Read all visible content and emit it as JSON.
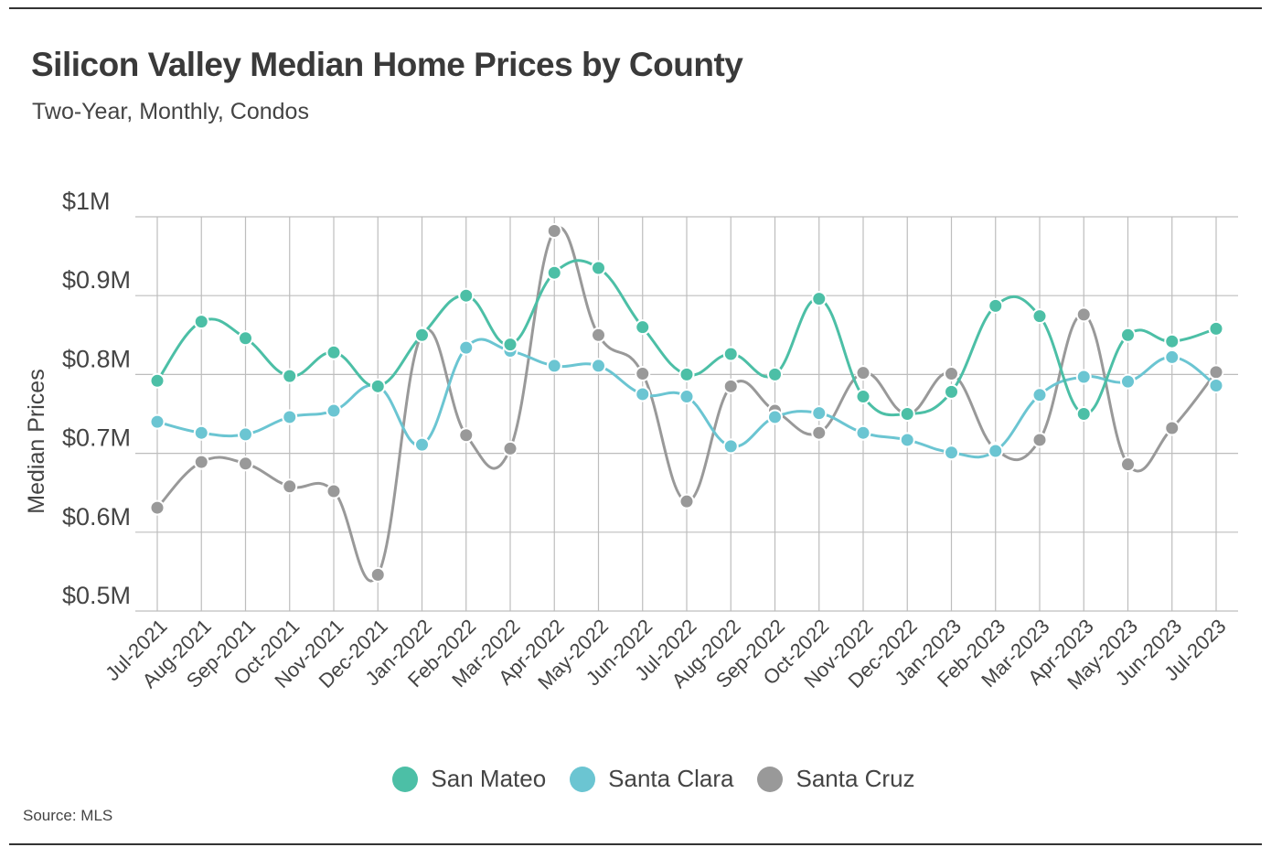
{
  "header": {
    "title": "Silicon Valley Median Home Prices by County",
    "subtitle": "Two-Year, Monthly, Condos"
  },
  "footer": {
    "source": "Source:  MLS"
  },
  "chart_data": {
    "type": "line",
    "title": "Silicon Valley Median Home Prices by County",
    "subtitle": "Two-Year, Monthly, Condos",
    "xlabel": "",
    "ylabel": "Median Prices",
    "ylim": [
      0.5,
      1.0
    ],
    "yticks": [
      0.5,
      0.6,
      0.7,
      0.8,
      0.9,
      1.0
    ],
    "ytick_labels": [
      "$0.5M",
      "$0.6M",
      "$0.7M",
      "$0.8M",
      "$0.9M",
      "$1M"
    ],
    "grid": true,
    "legend_position": "bottom-center",
    "categories": [
      "Jul-2021",
      "Aug-2021",
      "Sep-2021",
      "Oct-2021",
      "Nov-2021",
      "Dec-2021",
      "Jan-2022",
      "Feb-2022",
      "Mar-2022",
      "Apr-2022",
      "May-2022",
      "Jun-2022",
      "Jul-2022",
      "Aug-2022",
      "Sep-2022",
      "Oct-2022",
      "Nov-2022",
      "Dec-2022",
      "Jan-2023",
      "Feb-2023",
      "Mar-2023",
      "Apr-2023",
      "May-2023",
      "Jun-2023",
      "Jul-2023"
    ],
    "series": [
      {
        "name": "San Mateo",
        "color": "#4cbfa6",
        "values": [
          0.792,
          0.867,
          0.846,
          0.798,
          0.828,
          0.785,
          0.85,
          0.9,
          0.838,
          0.929,
          0.935,
          0.86,
          0.8,
          0.826,
          0.8,
          0.896,
          0.772,
          0.75,
          0.778,
          0.887,
          0.874,
          0.75,
          0.85,
          0.842,
          0.858
        ]
      },
      {
        "name": "Santa Clara",
        "color": "#6bc5d2",
        "values": [
          0.74,
          0.726,
          0.724,
          0.746,
          0.754,
          0.785,
          0.711,
          0.834,
          0.83,
          0.811,
          0.811,
          0.775,
          0.772,
          0.709,
          0.746,
          0.751,
          0.726,
          0.717,
          0.701,
          0.703,
          0.774,
          0.797,
          0.791,
          0.822,
          0.786
        ]
      },
      {
        "name": "Santa Cruz",
        "color": "#999999",
        "values": [
          0.631,
          0.689,
          0.687,
          0.658,
          0.652,
          0.546,
          0.851,
          0.723,
          0.706,
          0.982,
          0.85,
          0.801,
          0.639,
          0.785,
          0.754,
          0.726,
          0.802,
          0.75,
          0.801,
          0.705,
          0.717,
          0.876,
          0.686,
          0.732,
          0.803
        ]
      }
    ]
  }
}
